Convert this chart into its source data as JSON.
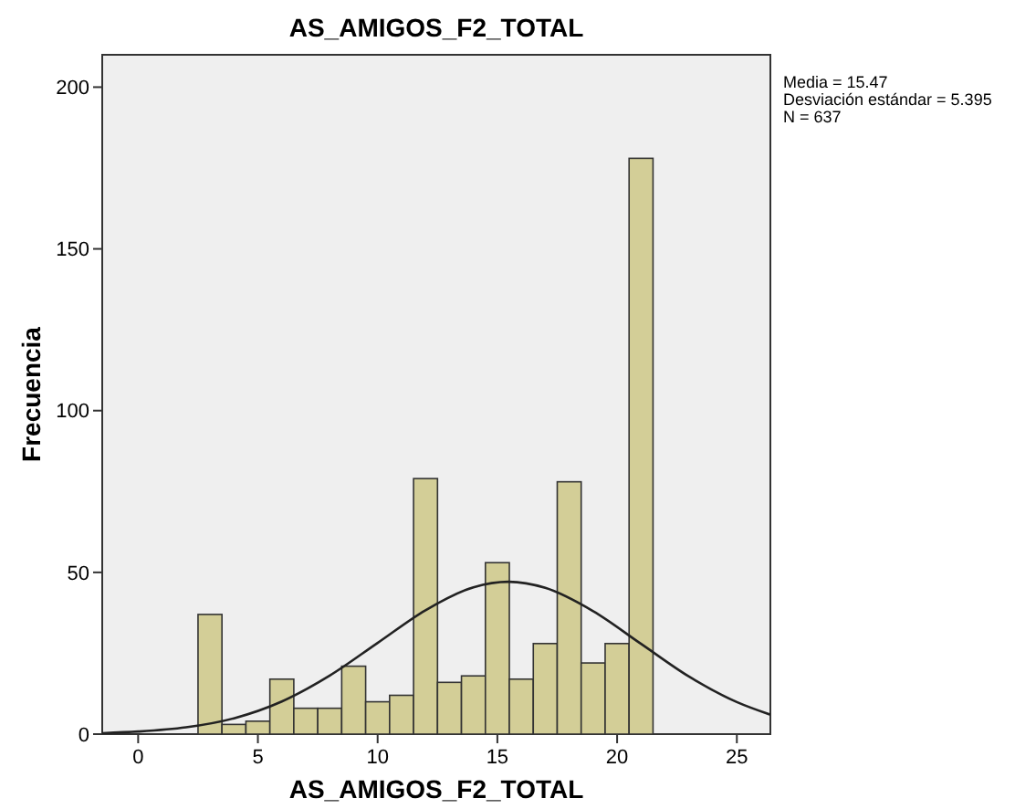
{
  "chart_data": {
    "type": "histogram",
    "title": "AS_AMIGOS_F2_TOTAL",
    "xlabel": "AS_AMIGOS_F2_TOTAL",
    "ylabel": "Frecuencia",
    "xlim": [
      -1.5,
      26.4
    ],
    "xticks": [
      0,
      5,
      10,
      15,
      20,
      25
    ],
    "ylim": [
      0,
      210
    ],
    "yticks": [
      0,
      50,
      100,
      150,
      200
    ],
    "grid": false,
    "annotations": [
      "Media = 15.47",
      "Desviación estándar = 5.395",
      "N = 637"
    ],
    "series": [
      {
        "color": "#d3ce97",
        "bins": [
          2.5,
          3.5,
          4.5,
          5.5,
          6.5,
          7.5,
          8.5,
          9.5,
          10.5,
          11.5,
          12.5,
          13.5,
          14.5,
          15.5,
          16.5,
          17.5,
          18.5,
          19.5,
          20.5,
          21.5
        ],
        "values": [
          37,
          3,
          4,
          17,
          8,
          8,
          21,
          10,
          12,
          79,
          16,
          18,
          53,
          17,
          28,
          78,
          22,
          28,
          178
        ]
      },
      {
        "type": "line",
        "color": "#222222",
        "x": [
          -1.5,
          0,
          2,
          4,
          6,
          8,
          10,
          12,
          14,
          15.47,
          17,
          19,
          21,
          23,
          25,
          26.4
        ],
        "values": [
          0.3,
          0.8,
          2.1,
          4.9,
          10.1,
          18.1,
          28.2,
          38.3,
          45.4,
          47.1,
          45.2,
          38.0,
          27.9,
          17.8,
          9.9,
          6.0
        ]
      }
    ]
  }
}
